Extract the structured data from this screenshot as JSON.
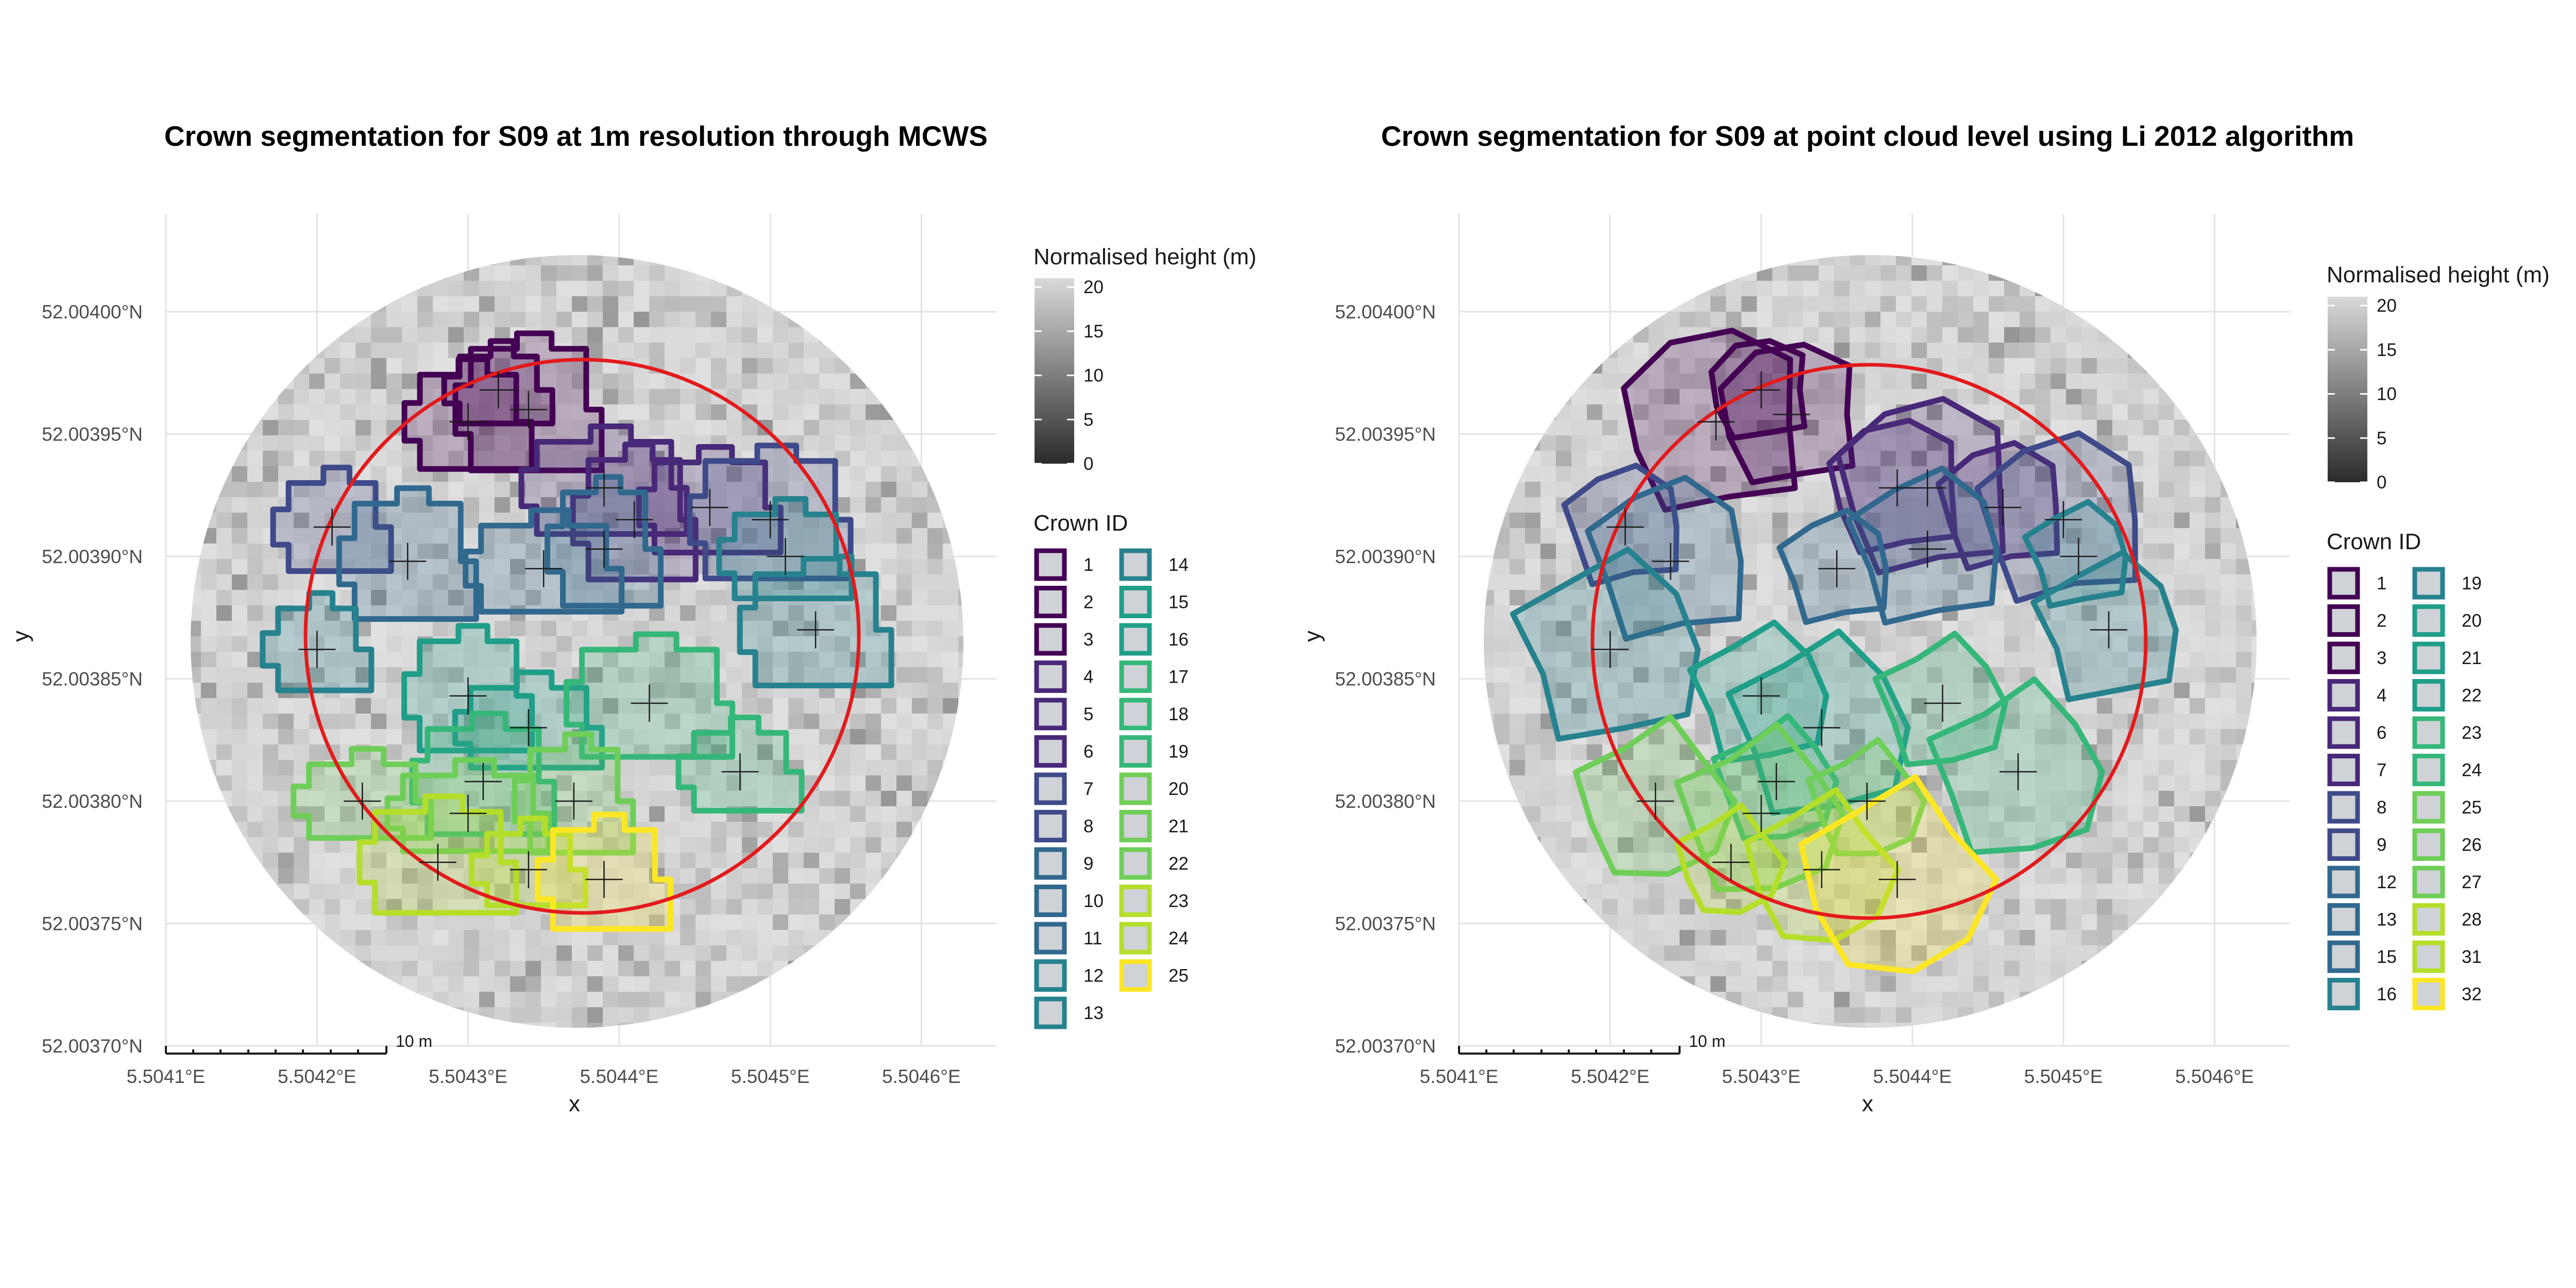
{
  "colors": {
    "plot_circle": "#e31a1c",
    "grid": "#e3e3e3",
    "raster_light": "#d3d3d3",
    "raster_dark": "#8a8a8a",
    "viridis": [
      "#440154",
      "#482878",
      "#3e4a89",
      "#31688e",
      "#26828e",
      "#1f9e89",
      "#35b779",
      "#6ece58",
      "#b5de2b",
      "#fde725"
    ]
  },
  "chart_data": [
    {
      "type": "map",
      "title": "Crown segmentation for S09 at 1m resolution through MCWS",
      "xlabel": "x",
      "ylabel": "y",
      "x_ticks": [
        "5.5041°E",
        "5.5042°E",
        "5.5043°E",
        "5.5044°E",
        "5.5045°E",
        "5.5046°E"
      ],
      "y_ticks": [
        "52.00370°N",
        "52.00375°N",
        "52.00380°N",
        "52.00385°N",
        "52.00390°N",
        "52.00395°N",
        "52.00400°N"
      ],
      "xlim": [
        5.5041,
        5.50465
      ],
      "ylim": [
        52.0037,
        52.00404
      ],
      "scale_bar": "10 m",
      "legend_height": {
        "title": "Normalised height (m)",
        "ticks": [
          "20",
          "15",
          "10",
          "5",
          "0"
        ],
        "range": [
          0,
          21
        ]
      },
      "legend_crowns": {
        "title": "Crown ID",
        "ids": [
          "1",
          "2",
          "3",
          "4",
          "5",
          "6",
          "7",
          "8",
          "9",
          "10",
          "11",
          "12",
          "13",
          "14",
          "15",
          "16",
          "17",
          "18",
          "19",
          "20",
          "21",
          "22",
          "23",
          "24",
          "25"
        ]
      },
      "tree_tops": [
        [
          5.50432,
          52.003968
        ],
        [
          5.5043,
          52.003955
        ],
        [
          5.50434,
          52.00396
        ],
        [
          5.50439,
          52.003928
        ],
        [
          5.50441,
          52.003915
        ],
        [
          5.50446,
          52.00392
        ],
        [
          5.5045,
          52.003915
        ],
        [
          5.50421,
          52.003912
        ],
        [
          5.50426,
          52.003898
        ],
        [
          5.50435,
          52.003895
        ],
        [
          5.50439,
          52.003903
        ],
        [
          5.50451,
          52.0039
        ],
        [
          5.50453,
          52.00387
        ],
        [
          5.5042,
          52.003862
        ],
        [
          5.5043,
          52.003843
        ],
        [
          5.50434,
          52.00383
        ],
        [
          5.50442,
          52.00384
        ],
        [
          5.50448,
          52.003812
        ],
        [
          5.50431,
          52.003808
        ],
        [
          5.5043,
          52.003795
        ],
        [
          5.50437,
          52.0038
        ],
        [
          5.50423,
          52.0038
        ],
        [
          5.50428,
          52.003775
        ],
        [
          5.50434,
          52.003772
        ],
        [
          5.50439,
          52.003768
        ]
      ]
    },
    {
      "type": "map",
      "title": "Crown segmentation for S09 at point cloud level using Li 2012 algorithm",
      "xlabel": "x",
      "ylabel": "y",
      "x_ticks": [
        "5.5041°E",
        "5.5042°E",
        "5.5043°E",
        "5.5044°E",
        "5.5045°E",
        "5.5046°E"
      ],
      "y_ticks": [
        "52.00370°N",
        "52.00375°N",
        "52.00380°N",
        "52.00385°N",
        "52.00390°N",
        "52.00395°N",
        "52.00400°N"
      ],
      "xlim": [
        5.5041,
        5.50465
      ],
      "ylim": [
        52.0037,
        52.00404
      ],
      "scale_bar": "10 m",
      "legend_height": {
        "title": "Normalised height (m)",
        "ticks": [
          "20",
          "15",
          "10",
          "5",
          "0"
        ],
        "range": [
          0,
          21
        ]
      },
      "legend_crowns": {
        "title": "Crown ID",
        "ids": [
          "1",
          "2",
          "3",
          "4",
          "6",
          "7",
          "8",
          "9",
          "12",
          "13",
          "15",
          "16",
          "19",
          "20",
          "21",
          "22",
          "23",
          "24",
          "25",
          "26",
          "27",
          "28",
          "31",
          "32"
        ]
      },
      "tree_tops": [
        [
          5.5043,
          52.003968
        ],
        [
          5.50432,
          52.003958
        ],
        [
          5.50427,
          52.003955
        ],
        [
          5.50439,
          52.003928
        ],
        [
          5.50441,
          52.003928
        ],
        [
          5.50446,
          52.00392
        ],
        [
          5.5045,
          52.003915
        ],
        [
          5.50421,
          52.003912
        ],
        [
          5.50424,
          52.003898
        ],
        [
          5.50435,
          52.003895
        ],
        [
          5.50441,
          52.003903
        ],
        [
          5.50451,
          52.0039
        ],
        [
          5.50453,
          52.00387
        ],
        [
          5.5042,
          52.003862
        ],
        [
          5.5043,
          52.003843
        ],
        [
          5.50434,
          52.00383
        ],
        [
          5.50442,
          52.00384
        ],
        [
          5.50447,
          52.003812
        ],
        [
          5.50431,
          52.003808
        ],
        [
          5.5043,
          52.003795
        ],
        [
          5.50437,
          52.0038
        ],
        [
          5.50423,
          52.0038
        ],
        [
          5.50428,
          52.003775
        ],
        [
          5.50434,
          52.003772
        ],
        [
          5.50439,
          52.003768
        ]
      ]
    }
  ]
}
